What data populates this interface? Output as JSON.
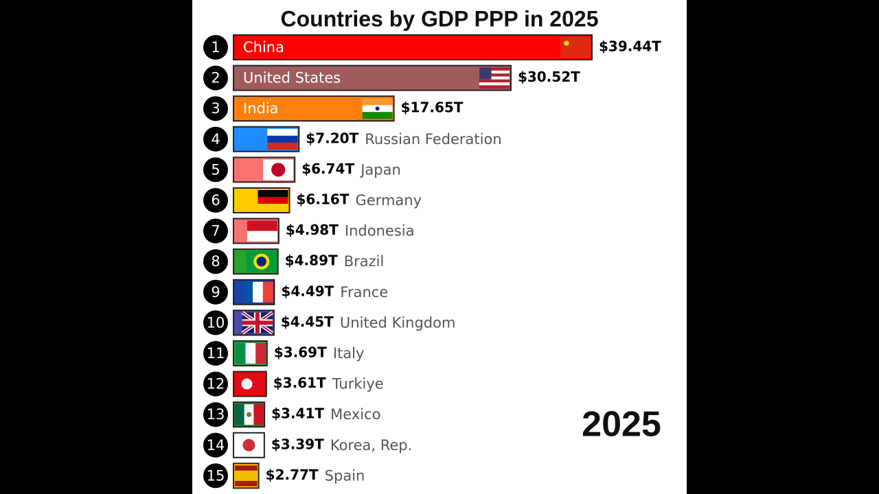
{
  "chart_data": {
    "type": "bar",
    "orientation": "horizontal",
    "title": "Countries by GDP PPP in 2025",
    "year": 2025,
    "ranks": [
      1,
      2,
      3,
      4,
      5,
      6,
      7,
      8,
      9,
      10,
      11,
      12,
      13,
      14,
      15
    ],
    "categories": [
      "China",
      "United States",
      "India",
      "Russian Federation",
      "Japan",
      "Germany",
      "Indonesia",
      "Brazil",
      "France",
      "United Kingdom",
      "Italy",
      "Turkiye",
      "Mexico",
      "Korea, Rep.",
      "Spain"
    ],
    "values": [
      39.44,
      30.52,
      17.65,
      7.2,
      6.74,
      6.16,
      4.98,
      4.89,
      4.49,
      4.45,
      3.69,
      3.61,
      3.41,
      3.39,
      2.77
    ],
    "value_labels": [
      "$39.44T",
      "$30.52T",
      "$17.65T",
      "$7.20T",
      "$6.74T",
      "$6.16T",
      "$4.98T",
      "$4.89T",
      "$4.49T",
      "$4.45T",
      "$3.69T",
      "$3.61T",
      "$3.41T",
      "$3.39T",
      "$2.77T"
    ],
    "colors": [
      "#ff0000",
      "#a05c5c",
      "#ff7f0e",
      "#1e8cff",
      "#f87272",
      "#ffcc00",
      "#f87272",
      "#2ca02c",
      "#1f3fa8",
      "#4b4ba6",
      "#2ca02c",
      "#ff0000",
      "#2e7d32",
      "#ffffff",
      "#ffcc00"
    ]
  }
}
